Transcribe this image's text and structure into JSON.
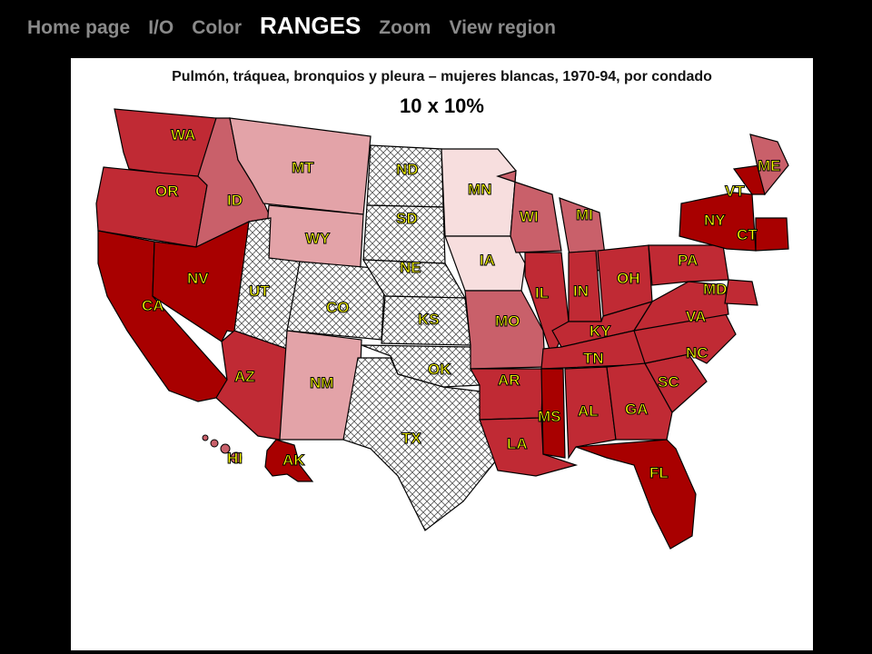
{
  "nav": {
    "items": [
      {
        "label": "Home page",
        "active": false
      },
      {
        "label": "I/O",
        "active": false
      },
      {
        "label": "Color",
        "active": false
      },
      {
        "label": "RANGES",
        "active": true
      },
      {
        "label": "Zoom",
        "active": false
      },
      {
        "label": "View region",
        "active": false
      }
    ]
  },
  "map": {
    "title": "Pulmón, tráquea, bronquios y pleura – mujeres blancas, 1970-94, por condado",
    "subtitle": "10 x 10%",
    "colors": {
      "darkest": "#a80000",
      "dark": "#c02a34",
      "mid": "#c9606a",
      "light": "#e3a3a8",
      "lightest": "#f7dede",
      "none": "#ffffff",
      "border": "#000000",
      "label_fill": "#ffff00"
    },
    "state_labels": [
      "WA",
      "OR",
      "CA",
      "ID",
      "NV",
      "MT",
      "WY",
      "UT",
      "CO",
      "AZ",
      "NM",
      "ND",
      "SD",
      "NE",
      "KS",
      "OK",
      "TX",
      "MN",
      "IA",
      "MO",
      "AR",
      "LA",
      "WI",
      "MI",
      "IL",
      "IN",
      "OH",
      "KY",
      "TN",
      "MS",
      "AL",
      "GA",
      "FL",
      "SC",
      "NC",
      "VA",
      "PA",
      "NY",
      "VT",
      "ME",
      "CT",
      "MD",
      "HI",
      "AK"
    ]
  }
}
